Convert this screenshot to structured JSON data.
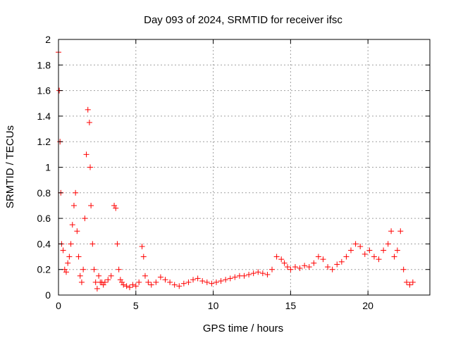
{
  "chart_data": {
    "type": "scatter",
    "title": "Day 093 of 2024, SRMTID for receiver ifsc",
    "xlabel": "GPS time / hours",
    "ylabel": "SRMTID / TECUs",
    "xlim": [
      0,
      24
    ],
    "ylim": [
      0,
      2
    ],
    "xticks": [
      0,
      5,
      10,
      15,
      20
    ],
    "yticks": [
      0,
      0.2,
      0.4,
      0.6,
      0.8,
      1,
      1.2,
      1.4,
      1.6,
      1.8,
      2
    ],
    "xtick_labels": [
      "0",
      "5",
      "10",
      "15",
      "20"
    ],
    "ytick_labels": [
      "0",
      "0.2",
      "0.4",
      "0.6",
      "0.8",
      "1",
      "1.2",
      "1.4",
      "1.6",
      "1.8",
      "2"
    ],
    "grid": true,
    "marker": "+",
    "color": "#ff0000",
    "series": [
      {
        "name": "SRMTID",
        "x": [
          0.0,
          0.05,
          0.1,
          0.15,
          0.2,
          0.3,
          0.4,
          0.5,
          0.6,
          0.7,
          0.8,
          0.9,
          1.0,
          1.1,
          1.2,
          1.3,
          1.4,
          1.5,
          1.6,
          1.7,
          1.8,
          1.9,
          2.0,
          2.05,
          2.1,
          2.2,
          2.3,
          2.4,
          2.5,
          2.6,
          2.7,
          2.8,
          2.9,
          3.0,
          3.2,
          3.4,
          3.6,
          3.7,
          3.8,
          3.9,
          4.0,
          4.1,
          4.2,
          4.4,
          4.6,
          4.8,
          5.0,
          5.2,
          5.4,
          5.5,
          5.6,
          5.8,
          6.0,
          6.3,
          6.6,
          6.9,
          7.2,
          7.5,
          7.8,
          8.1,
          8.4,
          8.7,
          9.0,
          9.3,
          9.6,
          9.9,
          10.2,
          10.5,
          10.8,
          11.1,
          11.4,
          11.7,
          12.0,
          12.3,
          12.6,
          12.9,
          13.2,
          13.5,
          13.8,
          14.1,
          14.4,
          14.6,
          14.8,
          15.0,
          15.3,
          15.6,
          15.9,
          16.2,
          16.5,
          16.8,
          17.1,
          17.4,
          17.7,
          18.0,
          18.3,
          18.6,
          18.9,
          19.2,
          19.5,
          19.8,
          20.1,
          20.4,
          20.7,
          21.0,
          21.3,
          21.5,
          21.7,
          21.9,
          22.1,
          22.3,
          22.5,
          22.7,
          22.9
        ],
        "y": [
          1.9,
          1.6,
          1.2,
          0.8,
          0.4,
          0.35,
          0.2,
          0.18,
          0.25,
          0.3,
          0.4,
          0.55,
          0.7,
          0.8,
          0.5,
          0.3,
          0.15,
          0.1,
          0.2,
          0.6,
          1.1,
          1.45,
          1.35,
          1.0,
          0.7,
          0.4,
          0.2,
          0.1,
          0.05,
          0.15,
          0.1,
          0.1,
          0.08,
          0.1,
          0.12,
          0.15,
          0.7,
          0.68,
          0.4,
          0.2,
          0.12,
          0.1,
          0.08,
          0.07,
          0.06,
          0.08,
          0.07,
          0.1,
          0.38,
          0.3,
          0.15,
          0.1,
          0.08,
          0.1,
          0.14,
          0.12,
          0.1,
          0.08,
          0.07,
          0.09,
          0.1,
          0.12,
          0.13,
          0.11,
          0.1,
          0.09,
          0.1,
          0.11,
          0.12,
          0.13,
          0.14,
          0.15,
          0.15,
          0.16,
          0.17,
          0.18,
          0.17,
          0.16,
          0.2,
          0.3,
          0.28,
          0.25,
          0.22,
          0.2,
          0.22,
          0.21,
          0.23,
          0.22,
          0.25,
          0.3,
          0.28,
          0.22,
          0.2,
          0.24,
          0.26,
          0.3,
          0.35,
          0.4,
          0.38,
          0.32,
          0.35,
          0.3,
          0.28,
          0.35,
          0.4,
          0.5,
          0.3,
          0.35,
          0.5,
          0.2,
          0.1,
          0.08,
          0.1
        ]
      }
    ]
  }
}
